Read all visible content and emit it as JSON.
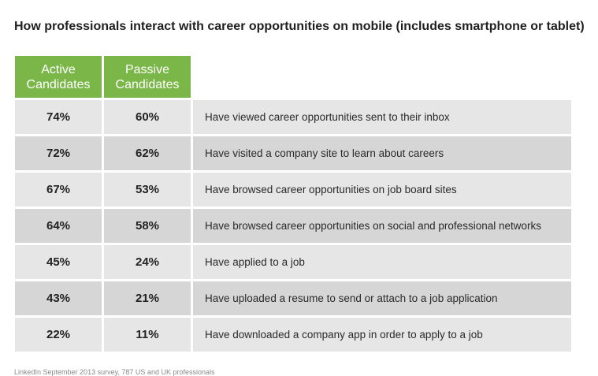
{
  "title": "How professionals interact with career opportunities on mobile (includes smartphone or tablet)",
  "footnote": "LinkedIn September 2013 survey, 787 US and UK professionals",
  "colors": {
    "header_green": "#7ab648",
    "row_light": "#e6e6e6",
    "row_dark": "#d6d6d6"
  },
  "chart_data": {
    "type": "table",
    "title": "How professionals interact with career opportunities on mobile (includes smartphone or tablet)",
    "columns": [
      {
        "line1": "Active",
        "line2": "Candidates"
      },
      {
        "line1": "Passive",
        "line2": "Candidates"
      }
    ],
    "rows": [
      {
        "active": "74%",
        "passive": "60%",
        "label": "Have viewed career opportunities sent to their inbox"
      },
      {
        "active": "72%",
        "passive": "62%",
        "label": "Have visited a company site to learn about careers"
      },
      {
        "active": "67%",
        "passive": "53%",
        "label": "Have browsed career opportunities on job board sites"
      },
      {
        "active": "64%",
        "passive": "58%",
        "label": "Have browsed career opportunities on social and professional networks"
      },
      {
        "active": "45%",
        "passive": "24%",
        "label": "Have applied to a job"
      },
      {
        "active": "43%",
        "passive": "21%",
        "label": "Have uploaded a resume to send or attach to a job application"
      },
      {
        "active": "22%",
        "passive": "11%",
        "label": "Have downloaded a company app in order to apply to a job"
      }
    ],
    "source": "LinkedIn September 2013 survey, 787 US and UK professionals"
  }
}
